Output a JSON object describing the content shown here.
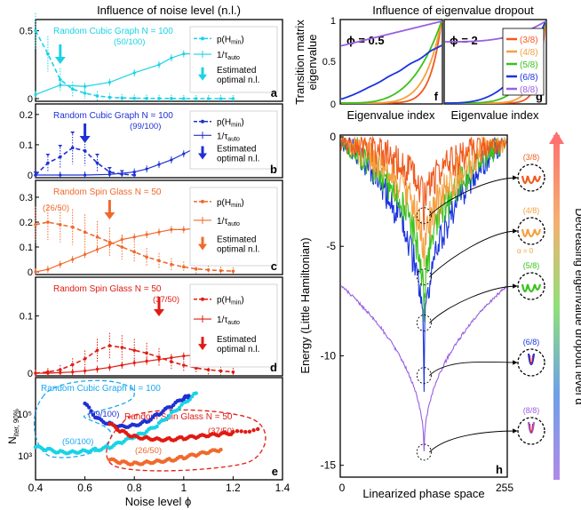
{
  "left": {
    "title": "Influence of noise level (n.l.)",
    "xlabel": "Noise level ϕ",
    "xticks": [
      "0.4",
      "0.6",
      "0.8",
      "1",
      "1.2",
      "1.4"
    ],
    "panels": [
      {
        "letter": "a",
        "color": "#19d3e6",
        "title": "Random Cubic Graph N = 100",
        "sub": "(50/100)",
        "yticks": [
          "0",
          "0.5"
        ],
        "yvals": [
          0,
          0.5
        ],
        "ymax": 0.55,
        "optimal_nl": 0.5,
        "mstyle": "round",
        "p": {
          "x": [
            0.4,
            0.45,
            0.5,
            0.55,
            0.6,
            0.65,
            0.7,
            0.75,
            0.8,
            0.85,
            0.9,
            0.95,
            1.0,
            1.05,
            1.1,
            1.15,
            1.2
          ],
          "y": [
            0.5,
            0.33,
            0.14,
            0.07,
            0.04,
            0.02,
            0.01,
            0.005,
            0.003,
            0.002,
            0.001,
            0.001,
            0.0,
            0.0,
            0.0,
            0.0,
            0.0
          ]
        },
        "t": {
          "x": [
            0.4,
            0.5,
            0.6,
            0.7,
            0.8,
            0.9,
            0.95,
            1.0,
            1.05,
            1.1
          ],
          "y": [
            0.03,
            0.1,
            0.09,
            0.12,
            0.19,
            0.25,
            0.3,
            0.33,
            0.33,
            0.33
          ]
        }
      },
      {
        "letter": "b",
        "color": "#1f31d2",
        "title": "Random Cubic Graph N = 100",
        "sub": "(99/100)",
        "yticks": [
          "0",
          "0.1",
          "0.2"
        ],
        "yvals": [
          0,
          0.1,
          0.2
        ],
        "ymax": 0.22,
        "optimal_nl": 0.6,
        "mstyle": "tri",
        "p": {
          "x": [
            0.4,
            0.45,
            0.5,
            0.55,
            0.6,
            0.65,
            0.7,
            0.75,
            0.8
          ],
          "y": [
            0.0,
            0.04,
            0.06,
            0.09,
            0.08,
            0.04,
            0.01,
            0.003,
            0.0
          ]
        },
        "t": {
          "x": [
            0.4,
            0.5,
            0.6,
            0.7,
            0.8,
            0.85,
            0.9,
            0.95,
            1.0,
            1.05,
            1.1
          ],
          "y": [
            0.0,
            0.0,
            0.0,
            0.002,
            0.01,
            0.02,
            0.035,
            0.05,
            0.07,
            0.09,
            0.11
          ]
        }
      },
      {
        "letter": "c",
        "color": "#f06a2c",
        "title": "Random Spin Glass N = 50",
        "sub": "(26/50)",
        "yticks": [
          "0",
          "0.1",
          "0.2",
          "0.3"
        ],
        "yvals": [
          0,
          0.1,
          0.2,
          0.3
        ],
        "ymax": 0.35,
        "optimal_nl": 0.7,
        "mstyle": "round",
        "p": {
          "x": [
            0.4,
            0.45,
            0.5,
            0.55,
            0.6,
            0.65,
            0.7,
            0.75,
            0.8,
            0.85,
            0.9,
            0.95,
            1.0,
            1.05,
            1.1,
            1.15,
            1.2
          ],
          "y": [
            0.19,
            0.2,
            0.19,
            0.18,
            0.16,
            0.14,
            0.12,
            0.1,
            0.08,
            0.06,
            0.045,
            0.03,
            0.02,
            0.012,
            0.008,
            0.005,
            0.003
          ]
        },
        "t": {
          "x": [
            0.4,
            0.45,
            0.5,
            0.55,
            0.6,
            0.65,
            0.7,
            0.75,
            0.8,
            0.85,
            0.9,
            0.95,
            1.0,
            1.05,
            1.1,
            1.15,
            1.2
          ],
          "y": [
            0.0,
            0.01,
            0.03,
            0.05,
            0.07,
            0.09,
            0.11,
            0.13,
            0.14,
            0.15,
            0.16,
            0.17,
            0.17,
            0.175,
            0.18,
            0.18,
            0.18
          ]
        }
      },
      {
        "letter": "d",
        "color": "#e01b12",
        "title": "Random Spin Glass N = 50",
        "sub": "(37/50)",
        "yticks": [
          "0",
          "0.1"
        ],
        "yvals": [
          0,
          0.1
        ],
        "ymax": 0.16,
        "optimal_nl": 0.9,
        "mstyle": "round",
        "p": {
          "x": [
            0.4,
            0.45,
            0.5,
            0.55,
            0.6,
            0.65,
            0.7,
            0.75,
            0.8,
            0.85,
            0.9,
            0.95,
            1.0,
            1.05,
            1.1,
            1.15,
            1.2
          ],
          "y": [
            0.0,
            0.002,
            0.006,
            0.015,
            0.025,
            0.04,
            0.048,
            0.045,
            0.04,
            0.035,
            0.028,
            0.02,
            0.014,
            0.009,
            0.006,
            0.004,
            0.002
          ]
        },
        "t": {
          "x": [
            0.4,
            0.45,
            0.5,
            0.55,
            0.6,
            0.65,
            0.7,
            0.75,
            0.8,
            0.85,
            0.9,
            0.95,
            1.0,
            1.05,
            1.1,
            1.15,
            1.2
          ],
          "y": [
            0.0,
            0.0,
            0.001,
            0.002,
            0.004,
            0.007,
            0.01,
            0.014,
            0.018,
            0.021,
            0.024,
            0.027,
            0.03,
            0.032,
            0.034,
            0.036,
            0.037
          ]
        }
      }
    ],
    "legend": {
      "p": "p(H",
      "pmin": "min",
      "psuffix": ")",
      "t": "1/τ",
      "tsub": "auto",
      "opt1": "Estimated",
      "opt2": "optimal n.l."
    },
    "e": {
      "letter": "e",
      "ylabel_main": "N",
      "ylabel_sub": "iter, 90%",
      "yticks": [
        "10³",
        "10⁵"
      ],
      "labels": {
        "rcg": "Random Cubic Graph N = 100",
        "rsg": "Random Spin Glass N = 50",
        "s99": "(99/100)",
        "s50": "(50/100)",
        "s37": "(37/50)",
        "s26": "(26/50)"
      },
      "series": [
        {
          "name": "(50/100)",
          "color": "#19d3e6",
          "x": [
            0.4,
            0.45,
            0.5,
            0.55,
            0.6,
            0.65,
            0.7,
            0.75,
            0.8,
            0.85,
            0.9,
            0.95,
            1.0,
            1.05
          ],
          "y": [
            3.3,
            3.2,
            3.1,
            3.1,
            3.15,
            3.2,
            3.3,
            3.5,
            3.7,
            3.9,
            4.2,
            4.6,
            5.0,
            5.4
          ]
        },
        {
          "name": "(99/100)",
          "color": "#1f31d2",
          "x": [
            0.6,
            0.65,
            0.7,
            0.75,
            0.8,
            0.85,
            0.9,
            0.95,
            1.0,
            1.02
          ],
          "y": [
            5.0,
            4.4,
            4.2,
            4.1,
            4.15,
            4.3,
            4.6,
            4.9,
            5.2,
            5.3
          ]
        },
        {
          "name": "(37/50)",
          "color": "#e01b12",
          "x": [
            0.7,
            0.75,
            0.8,
            0.85,
            0.9,
            0.95,
            1.0,
            1.05,
            1.1,
            1.15,
            1.2,
            1.3
          ],
          "y": [
            4.2,
            3.9,
            3.7,
            3.65,
            3.6,
            3.6,
            3.65,
            3.7,
            3.75,
            3.8,
            3.85,
            4.0
          ]
        },
        {
          "name": "(26/50)",
          "color": "#f06a2c",
          "x": [
            0.7,
            0.75,
            0.8,
            0.85,
            0.9,
            0.95,
            1.0,
            1.05,
            1.1,
            1.15
          ],
          "y": [
            2.8,
            2.7,
            2.65,
            2.7,
            2.75,
            2.8,
            2.9,
            3.0,
            3.1,
            3.2
          ]
        }
      ]
    }
  },
  "right": {
    "title": "Influence of eigenvalue dropout",
    "top_ylabel1": "Transition matrix",
    "top_ylabel2": "eigenvalue",
    "top_yticks": [
      "0",
      "0.5",
      "1"
    ],
    "top_xlabel": "Eigenvalue index",
    "f": {
      "letter": "f",
      "phi": "ϕ = 0.5"
    },
    "g": {
      "letter": "g",
      "phi": "ϕ = 2"
    },
    "levels": [
      {
        "name": "(3/8)",
        "color": "#f05a1e"
      },
      {
        "name": "(4/8)",
        "color": "#f5a040"
      },
      {
        "name": "(5/8)",
        "color": "#39c21c"
      },
      {
        "name": "(6/8)",
        "color": "#1a34e0"
      },
      {
        "name": "(8/8)",
        "color": "#9a5fe0"
      }
    ],
    "h": {
      "letter": "h",
      "ylabel": "Energy (Little Hamiltonian)",
      "xlabel": "Linearized phase space",
      "yticks": [
        "0",
        "-5",
        "-10",
        "-15"
      ],
      "yvals": [
        0,
        -5,
        -10,
        -15
      ],
      "xticks": [
        "0",
        "255"
      ],
      "min_energy": [
        -3.6,
        -6.4,
        -8.5,
        -10.9,
        -14.4
      ],
      "alpha_label": "α = 0"
    },
    "colorbar_label": "Decreasing eigenvalue dropout level α"
  }
}
